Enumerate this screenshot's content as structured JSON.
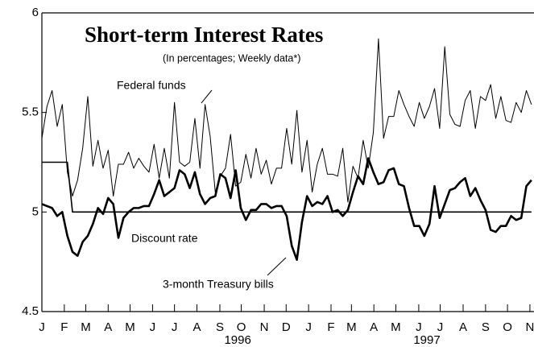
{
  "chart_data": {
    "type": "line",
    "title": "Short-term Interest Rates",
    "subtitle": "(In percentages; Weekly data*)",
    "x": [
      0,
      1,
      2,
      3,
      4,
      5,
      6,
      7,
      8,
      9,
      10,
      11,
      12,
      13,
      14,
      15,
      16,
      17,
      18,
      19,
      20,
      21,
      22,
      23,
      24,
      25,
      26,
      27,
      28,
      29,
      30,
      31,
      32,
      33,
      34,
      35,
      36,
      37,
      38,
      39,
      40,
      41,
      42,
      43,
      44,
      45,
      46,
      47,
      48,
      49,
      50,
      51,
      52,
      53,
      54,
      55,
      56,
      57,
      58,
      59,
      60,
      61,
      62,
      63,
      64,
      65,
      66,
      67,
      68,
      69,
      70,
      71,
      72,
      73,
      74,
      75,
      76,
      77,
      78,
      79,
      80,
      81,
      82,
      83,
      84,
      85,
      86,
      87,
      88,
      89,
      90,
      91,
      92,
      93,
      94,
      95,
      96
    ],
    "series": [
      {
        "name": "Federal funds",
        "color": "#000000",
        "width": 1,
        "values": [
          5.37,
          5.53,
          5.61,
          5.43,
          5.54,
          5.2,
          5.08,
          5.16,
          5.32,
          5.58,
          5.23,
          5.36,
          5.22,
          5.31,
          5.08,
          5.24,
          5.24,
          5.3,
          5.22,
          5.27,
          5.23,
          5.2,
          5.34,
          5.17,
          5.32,
          5.17,
          5.55,
          5.25,
          5.23,
          5.25,
          5.47,
          5.22,
          5.54,
          5.38,
          5.1,
          5.18,
          5.22,
          5.39,
          5.13,
          5.15,
          5.29,
          5.17,
          5.32,
          5.19,
          5.26,
          5.14,
          5.22,
          5.22,
          5.42,
          5.24,
          5.51,
          5.2,
          5.36,
          5.1,
          5.24,
          5.32,
          5.19,
          5.19,
          5.18,
          5.32,
          5.05,
          5.23,
          5.17,
          5.36,
          5.22,
          5.4,
          5.87,
          5.37,
          5.48,
          5.48,
          5.61,
          5.54,
          5.48,
          5.43,
          5.55,
          5.47,
          5.53,
          5.62,
          5.42,
          5.83,
          5.49,
          5.44,
          5.43,
          5.56,
          5.61,
          5.42,
          5.58,
          5.56,
          5.64,
          5.47,
          5.58,
          5.46,
          5.45,
          5.55,
          5.5,
          5.61,
          5.54
        ]
      },
      {
        "name": "3-month Treasury bills",
        "color": "#000000",
        "width": 2.6,
        "values": [
          5.04,
          5.03,
          5.02,
          4.98,
          5.0,
          4.88,
          4.8,
          4.78,
          4.85,
          4.88,
          4.94,
          5.02,
          4.99,
          5.07,
          5.04,
          4.87,
          4.97,
          5.0,
          5.02,
          5.02,
          5.03,
          5.03,
          5.09,
          5.16,
          5.08,
          5.1,
          5.12,
          5.21,
          5.19,
          5.12,
          5.2,
          5.09,
          5.04,
          5.07,
          5.08,
          5.19,
          5.17,
          5.07,
          5.21,
          5.02,
          4.96,
          5.01,
          5.01,
          5.04,
          5.04,
          5.02,
          5.03,
          5.03,
          4.98,
          4.83,
          4.76,
          4.95,
          5.08,
          5.03,
          5.05,
          5.04,
          5.08,
          5.0,
          5.01,
          4.98,
          5.01,
          5.1,
          5.18,
          5.14,
          5.27,
          5.2,
          5.14,
          5.15,
          5.21,
          5.22,
          5.14,
          5.13,
          5.02,
          4.93,
          4.93,
          4.88,
          4.94,
          5.13,
          4.97,
          5.04,
          5.11,
          5.12,
          5.15,
          5.17,
          5.08,
          5.12,
          5.06,
          5.01,
          4.91,
          4.9,
          4.93,
          4.93,
          4.98,
          4.96,
          4.97,
          5.13,
          5.16
        ]
      },
      {
        "name": "Discount rate",
        "color": "#000000",
        "width": 1.6,
        "values": [
          5.25,
          5.25,
          5.25,
          5.25,
          5.25,
          5.25,
          5,
          5,
          5,
          5,
          5,
          5,
          5,
          5,
          5,
          5,
          5,
          5,
          5,
          5,
          5,
          5,
          5,
          5,
          5,
          5,
          5,
          5,
          5,
          5,
          5,
          5,
          5,
          5,
          5,
          5,
          5,
          5,
          5,
          5,
          5,
          5,
          5,
          5,
          5,
          5,
          5,
          5,
          5,
          5,
          5,
          5,
          5,
          5,
          5,
          5,
          5,
          5,
          5,
          5,
          5,
          5,
          5,
          5,
          5,
          5,
          5,
          5,
          5,
          5,
          5,
          5,
          5,
          5,
          5,
          5,
          5,
          5,
          5,
          5,
          5,
          5,
          5,
          5,
          5,
          5,
          5,
          5,
          5,
          5,
          5,
          5,
          5,
          5,
          5,
          5,
          5
        ]
      }
    ],
    "xlim": [
      0,
      96.5
    ],
    "xticks": [
      {
        "value": 0,
        "label": "J"
      },
      {
        "value": 4.4,
        "label": "F"
      },
      {
        "value": 8.6,
        "label": "M"
      },
      {
        "value": 13,
        "label": "A"
      },
      {
        "value": 17.3,
        "label": "M"
      },
      {
        "value": 21.7,
        "label": "J"
      },
      {
        "value": 26,
        "label": "J"
      },
      {
        "value": 30.4,
        "label": "A"
      },
      {
        "value": 34.9,
        "label": "S"
      },
      {
        "value": 39.1,
        "label": "O"
      },
      {
        "value": 43.6,
        "label": "N"
      },
      {
        "value": 47.9,
        "label": "D"
      },
      {
        "value": 52.3,
        "label": "J"
      },
      {
        "value": 56.7,
        "label": "F"
      },
      {
        "value": 60.7,
        "label": "M"
      },
      {
        "value": 65.1,
        "label": "A"
      },
      {
        "value": 69.4,
        "label": "M"
      },
      {
        "value": 73.9,
        "label": "J"
      },
      {
        "value": 78.1,
        "label": "J"
      },
      {
        "value": 82.6,
        "label": "A"
      },
      {
        "value": 87,
        "label": "S"
      },
      {
        "value": 91.3,
        "label": "O"
      },
      {
        "value": 95.7,
        "label": "N"
      }
    ],
    "year_labels": [
      {
        "value": 38.4,
        "label": "1996"
      },
      {
        "value": 75.5,
        "label": "1997"
      }
    ],
    "ylim": [
      4.5,
      6
    ],
    "yticks": [
      4.5,
      5,
      5.5,
      6
    ]
  }
}
